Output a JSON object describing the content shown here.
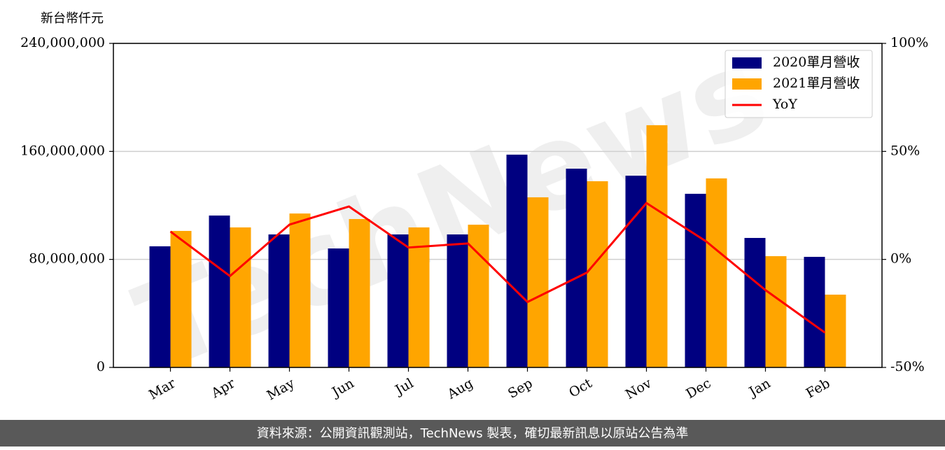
{
  "chart_data": {
    "type": "bar",
    "y_label": "新台幣仟元",
    "watermark": "TechNews",
    "footer": "資料來源：公開資訊觀測站，TechNews 製表，確切最新訊息以原站公告為準",
    "categories": [
      "Mar",
      "Apr",
      "May",
      "Jun",
      "Jul",
      "Aug",
      "Sep",
      "Oct",
      "Nov",
      "Dec",
      "Jan",
      "Feb"
    ],
    "series": [
      {
        "name": "2020單月營收",
        "color": "#000080",
        "type": "bar",
        "values": [
          89700000,
          112500000,
          98500000,
          88100000,
          98500000,
          98500000,
          157600000,
          147200000,
          142000000,
          128600000,
          95900000,
          81900000
        ]
      },
      {
        "name": "2021單月營收",
        "color": "#ffa500",
        "type": "bar",
        "values": [
          101100000,
          103700000,
          114000000,
          109900000,
          103700000,
          105700000,
          126000000,
          137900000,
          179400000,
          140000000,
          82400000,
          53900000
        ]
      },
      {
        "name": "YoY",
        "color": "#ff0000",
        "type": "line",
        "axis": "y2",
        "values": [
          12.9,
          -7.7,
          16.1,
          24.5,
          5.5,
          7.4,
          -19.7,
          -6.1,
          26.1,
          8.4,
          -14.2,
          -33.9
        ]
      }
    ],
    "ylim": [
      0,
      240000000
    ],
    "yticks": [
      0,
      {
        "value": 80000000,
        "label": "80,000,000"
      },
      {
        "value": 160000000,
        "label": "160,000,000"
      },
      {
        "value": 240000000,
        "label": "240,000,000"
      }
    ],
    "y2lim": [
      -50,
      100
    ],
    "y2ticks": [
      {
        "value": -50,
        "label": "-50%"
      },
      {
        "value": 0,
        "label": "0%"
      },
      {
        "value": 50,
        "label": "50%"
      },
      {
        "value": 100,
        "label": "100%"
      }
    ],
    "grid": true,
    "legend": "upper right"
  }
}
